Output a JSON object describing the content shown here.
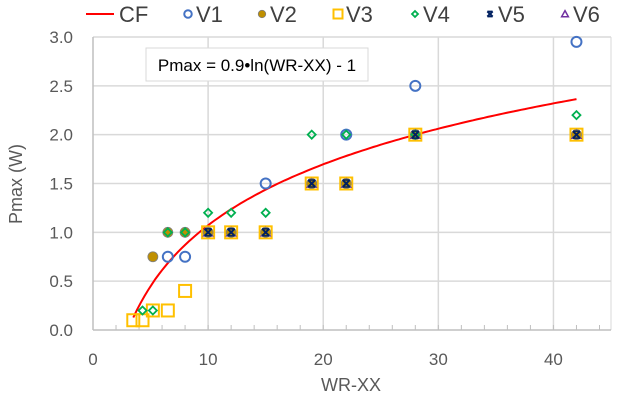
{
  "chart_data": {
    "type": "scatter",
    "title": "",
    "xlabel": "WR-XX",
    "ylabel": "Pmax (W)",
    "xlim": [
      0,
      45
    ],
    "ylim": [
      0,
      3.0
    ],
    "xticks": [
      0,
      10,
      20,
      30,
      40
    ],
    "xtick_labels": [
      "0",
      "10",
      "20",
      "30",
      "40"
    ],
    "yticks": [
      0,
      0.5,
      1.0,
      1.5,
      2.0,
      2.5,
      3.0
    ],
    "ytick_labels": [
      "0.0",
      "0.5",
      "1.0",
      "1.5",
      "2.0",
      "2.5",
      "3.0"
    ],
    "x_minor_step": 2,
    "grid": true,
    "legend_position": "top",
    "annotation": "Pmax = 0.9•ln(WR-XX) - 1",
    "fit_curve": {
      "name": "CF",
      "formula": "0.9*ln(x) - 1",
      "a": 0.9,
      "b": -1,
      "x_range": [
        3.5,
        42
      ],
      "color": "#ff0000"
    },
    "series": [
      {
        "name": "V1",
        "marker": "circle-open",
        "color": "#4472c4",
        "points": [
          [
            6.5,
            0.75
          ],
          [
            8,
            0.75
          ],
          [
            15,
            1.5
          ],
          [
            22,
            2.0
          ],
          [
            28,
            2.5
          ],
          [
            42,
            2.95
          ]
        ]
      },
      {
        "name": "V2",
        "marker": "circle-filled",
        "color": "#bf8f00",
        "points": [
          [
            5.2,
            0.75
          ],
          [
            6.5,
            1.0
          ],
          [
            8,
            1.0
          ],
          [
            10,
            1.0
          ],
          [
            12,
            1.0
          ],
          [
            15,
            1.0
          ],
          [
            19,
            1.5
          ],
          [
            22,
            1.5
          ],
          [
            28,
            2.0
          ],
          [
            42,
            2.0
          ]
        ]
      },
      {
        "name": "V3",
        "marker": "square-open",
        "color": "#ffc000",
        "points": [
          [
            3.5,
            0.1
          ],
          [
            4.3,
            0.1
          ],
          [
            5.2,
            0.2
          ],
          [
            6.5,
            0.2
          ],
          [
            8,
            0.4
          ],
          [
            10,
            1.0
          ],
          [
            12,
            1.0
          ],
          [
            15,
            1.0
          ],
          [
            19,
            1.5
          ],
          [
            22,
            1.5
          ],
          [
            28,
            2.0
          ],
          [
            42,
            2.0
          ]
        ]
      },
      {
        "name": "V4",
        "marker": "diamond-open",
        "color": "#00b050",
        "points": [
          [
            4.3,
            0.2
          ],
          [
            5.2,
            0.2
          ],
          [
            6.5,
            1.0
          ],
          [
            8,
            1.0
          ],
          [
            10,
            1.2
          ],
          [
            12,
            1.2
          ],
          [
            15,
            1.2
          ],
          [
            19,
            2.0
          ],
          [
            22,
            2.0
          ],
          [
            28,
            2.0
          ],
          [
            42,
            2.2
          ]
        ]
      },
      {
        "name": "V5",
        "marker": "x-star",
        "color": "#002060",
        "points": [
          [
            10,
            1.0
          ],
          [
            12,
            1.0
          ],
          [
            15,
            1.0
          ],
          [
            19,
            1.5
          ],
          [
            22,
            1.5
          ],
          [
            28,
            2.0
          ],
          [
            42,
            2.0
          ]
        ]
      },
      {
        "name": "V6",
        "marker": "triangle-open",
        "color": "#7030a0",
        "points": [
          [
            10,
            1.0
          ],
          [
            12,
            1.0
          ],
          [
            15,
            1.0
          ],
          [
            19,
            1.5
          ],
          [
            22,
            1.5
          ],
          [
            28,
            2.0
          ],
          [
            42,
            2.0
          ]
        ]
      }
    ]
  },
  "legend": {
    "items": [
      {
        "label": "CF",
        "marker": "line",
        "color": "#ff0000"
      },
      {
        "label": "V1",
        "marker": "circle-open",
        "color": "#4472c4"
      },
      {
        "label": "V2",
        "marker": "circle-filled",
        "color": "#bf8f00"
      },
      {
        "label": "V3",
        "marker": "square-open",
        "color": "#ffc000"
      },
      {
        "label": "V4",
        "marker": "diamond-open",
        "color": "#00b050"
      },
      {
        "label": "V5",
        "marker": "x-star",
        "color": "#002060"
      },
      {
        "label": "V6",
        "marker": "triangle-open",
        "color": "#7030a0"
      }
    ]
  },
  "colors": {
    "grid": "#d9d9d9",
    "axis": "#bfbfbf",
    "text": "#595959"
  }
}
